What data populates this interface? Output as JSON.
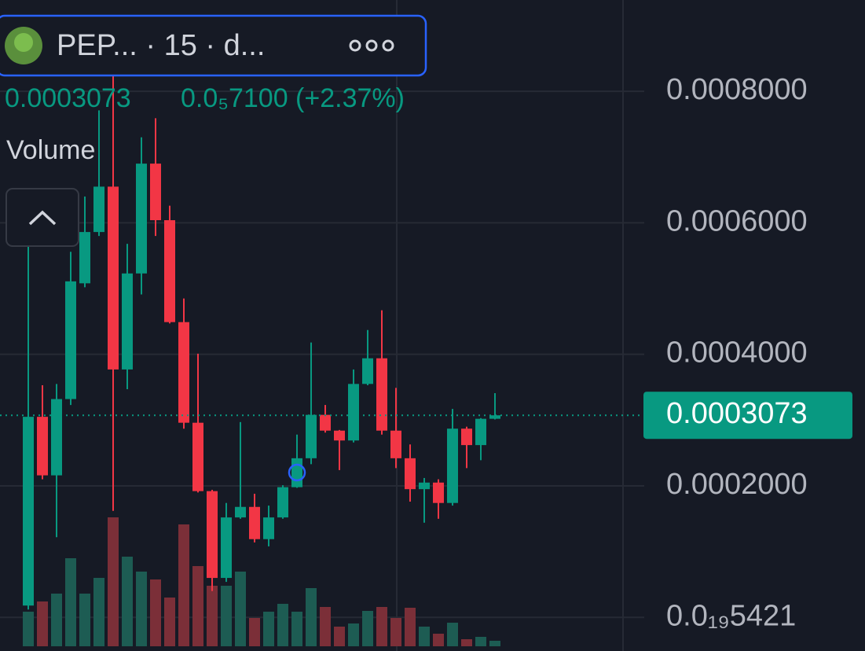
{
  "chart_data": {
    "type": "candlestick",
    "title": "PEP... · 15 · d...",
    "last_price": 0.0003073,
    "change": "0.0₅7100 (+2.37%)",
    "volume_label": "Volume",
    "open": [
      1.8e-05,
      0.000305,
      0.000216,
      0.000332,
      0.000508,
      0.000586,
      0.000655,
      0.000377,
      0.000523,
      0.00069,
      0.000604,
      0.000449,
      0.000296,
      0.000192,
      6e-05,
      0.000152,
      0.000168,
      0.000119,
      0.000152,
      0.000198,
      0.000242,
      0.000308,
      0.000284,
      0.000269,
      0.000355,
      0.000394,
      0.000284,
      0.000242,
      0.000195,
      0.000205,
      0.000174,
      0.000287,
      0.000262,
      0.000302
    ],
    "high": [
      0.000592,
      0.000353,
      0.000355,
      0.000556,
      0.00064,
      0.000771,
      0.000825,
      0.000568,
      0.00073,
      0.000759,
      0.000626,
      0.000485,
      0.000401,
      0.000194,
      0.000174,
      0.000297,
      0.000188,
      0.00017,
      0.000201,
      0.000278,
      0.000418,
      0.000323,
      0.000285,
      0.000377,
      0.000437,
      0.000467,
      0.000349,
      0.000263,
      0.000212,
      0.00021,
      0.000317,
      0.00029,
      0.000303,
      0.000341
    ],
    "low": [
      1.2e-05,
      0.00021,
      0.000122,
      0.000323,
      0.000502,
      0.00058,
      0.000162,
      0.000347,
      0.000491,
      0.00058,
      0.000447,
      0.000287,
      0.00019,
      4e-05,
      5.4e-05,
      0.00015,
      0.000114,
      0.000108,
      0.00015,
      0.000197,
      0.000233,
      0.000281,
      0.000224,
      0.000266,
      0.000353,
      0.000278,
      0.000227,
      0.000176,
      0.000144,
      0.00015,
      0.00017,
      0.000227,
      0.000239,
      0.000301
    ],
    "close": [
      0.000305,
      0.000216,
      0.000332,
      0.000511,
      0.000586,
      0.000655,
      0.000377,
      0.000523,
      0.00069,
      0.000604,
      0.000449,
      0.000296,
      0.000192,
      6e-05,
      0.000152,
      0.000168,
      0.000119,
      0.000152,
      0.000198,
      0.000242,
      0.000308,
      0.000284,
      0.000269,
      0.000355,
      0.000394,
      0.000284,
      0.000242,
      0.000195,
      0.000205,
      0.000174,
      0.000287,
      0.000262,
      0.000302,
      0.0003073
    ],
    "volume": [
      44,
      57,
      67,
      112,
      67,
      87,
      164,
      114,
      95,
      85,
      62,
      155,
      102,
      77,
      77,
      95,
      36,
      44,
      54,
      44,
      74,
      50,
      25,
      29,
      45,
      50,
      36,
      49,
      25,
      16,
      30,
      9,
      12,
      7
    ],
    "up_color": "#089981",
    "down_color": "#f23645",
    "volume_up_color": "#1d5c53",
    "volume_down_color": "#7b2f38",
    "ylim": [
      -5.11e-05,
      0.0009388
    ],
    "yticks": [
      {
        "value": 5.421e-20,
        "label": "0.0₁₉5421"
      },
      {
        "value": 0.0002,
        "label": "0.0002000"
      },
      {
        "value": 0.0004,
        "label": "0.0004000"
      },
      {
        "value": 0.0006,
        "label": "0.0006000"
      },
      {
        "value": 0.0008,
        "label": "0.0008000"
      }
    ],
    "grid": true
  }
}
